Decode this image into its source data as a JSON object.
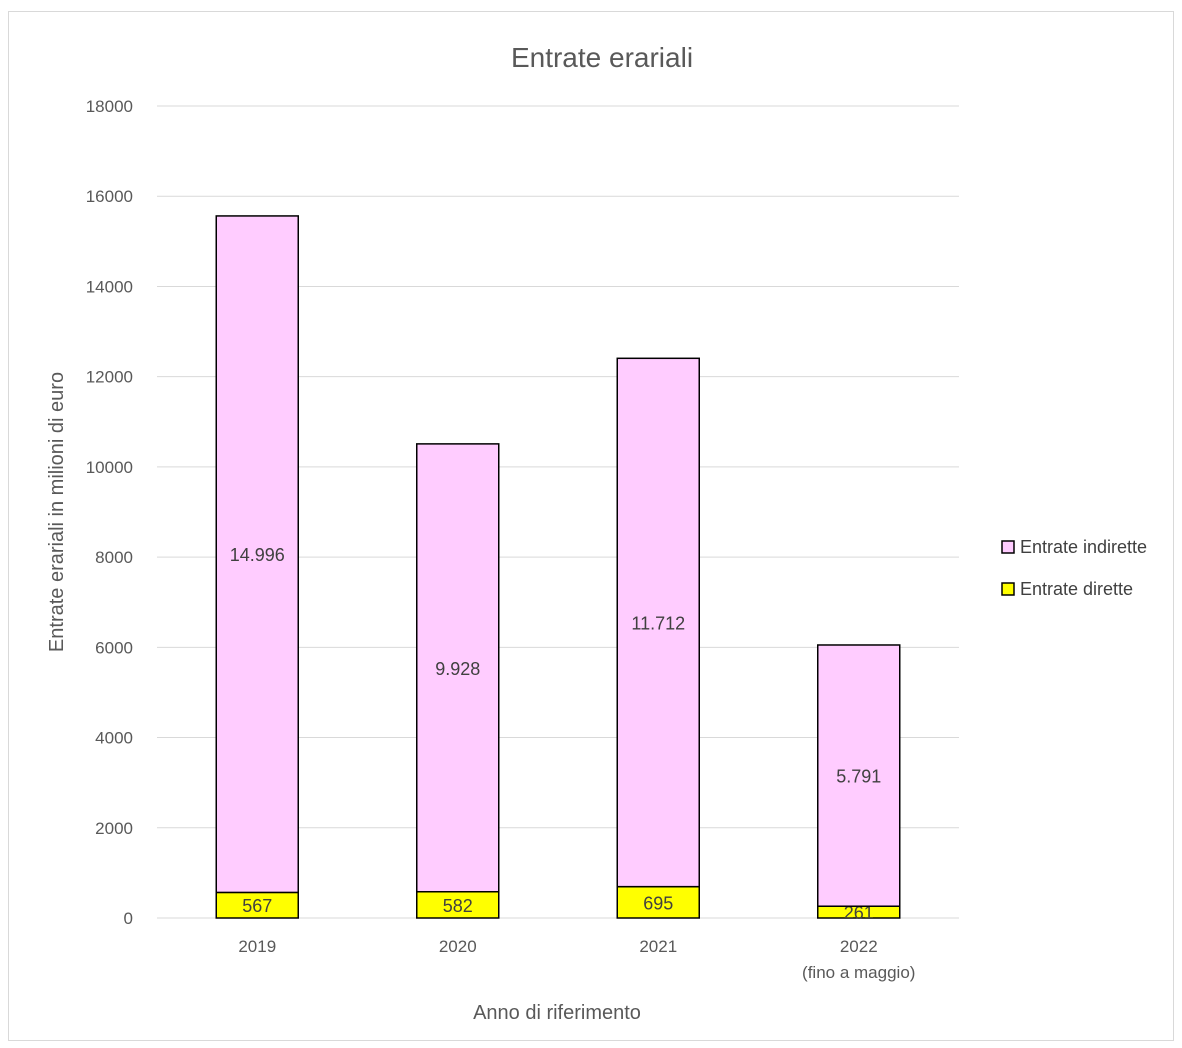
{
  "chart_data": {
    "type": "bar",
    "stacked": true,
    "title": "Entrate erariali",
    "xlabel": "Anno di riferimento",
    "ylabel": "Entrate erariali in milioni di euro",
    "categories": [
      [
        "2019"
      ],
      [
        "2020"
      ],
      [
        "2021"
      ],
      [
        "2022",
        "(fino a maggio)"
      ]
    ],
    "series": [
      {
        "name": "Entrate dirette",
        "color": "#ffff00",
        "values": [
          567,
          582,
          695,
          261
        ],
        "labels": [
          "567",
          "582",
          "695",
          "261"
        ]
      },
      {
        "name": "Entrate indirette",
        "color": "#ffccff",
        "values": [
          14996,
          9928,
          11712,
          5791
        ],
        "labels": [
          "14.996",
          "9.928",
          "11.712",
          "5.791"
        ]
      }
    ],
    "legend_order": [
      "Entrate indirette",
      "Entrate dirette"
    ],
    "ylim": [
      0,
      18000
    ],
    "yticks": [
      0,
      2000,
      4000,
      6000,
      8000,
      10000,
      12000,
      14000,
      16000,
      18000
    ],
    "legend_position": "right",
    "grid": true
  }
}
